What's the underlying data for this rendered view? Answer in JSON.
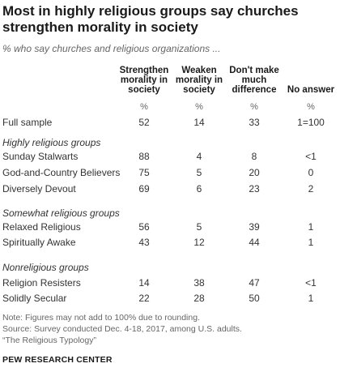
{
  "title": "Most in highly religious groups say churches strengthen morality in society",
  "subtitle": "% who say churches and religious organizations ...",
  "columns": [
    "Strengthen morality in society",
    "Weaken morality in society",
    "Don't make much difference",
    "No answer"
  ],
  "percent_symbol": "%",
  "chart_data": {
    "type": "table",
    "title": "Most in highly religious groups say churches strengthen morality in society",
    "subtitle": "% who say churches and religious organizations ...",
    "columns": [
      "Strengthen morality in society",
      "Weaken morality in society",
      "Don't make much difference",
      "No answer"
    ],
    "sections": [
      {
        "group": "",
        "rows": [
          {
            "label": "Full sample",
            "values": [
              "52",
              "14",
              "33",
              "1=100"
            ]
          }
        ]
      },
      {
        "group": "Highly religious groups",
        "rows": [
          {
            "label": "Sunday Stalwarts",
            "values": [
              "88",
              "4",
              "8",
              "<1"
            ]
          },
          {
            "label": "God-and-Country Believers",
            "values": [
              "75",
              "5",
              "20",
              "0"
            ]
          },
          {
            "label": "Diversely Devout",
            "values": [
              "69",
              "6",
              "23",
              "2"
            ]
          }
        ]
      },
      {
        "group": "Somewhat religious groups",
        "rows": [
          {
            "label": "Relaxed Religious",
            "values": [
              "56",
              "5",
              "39",
              "1"
            ]
          },
          {
            "label": "Spiritually Awake",
            "values": [
              "43",
              "12",
              "44",
              "1"
            ]
          }
        ]
      },
      {
        "group": "Nonreligious groups",
        "rows": [
          {
            "label": "Religion Resisters",
            "values": [
              "14",
              "38",
              "47",
              "<1"
            ]
          },
          {
            "label": "Solidly Secular",
            "values": [
              "22",
              "28",
              "50",
              "1"
            ]
          }
        ]
      }
    ]
  },
  "notes": [
    "Note: Figures may not add to 100% due to rounding.",
    "Source: Survey conducted Dec. 4-18, 2017, among U.S. adults.",
    "“The Religious Typology”"
  ],
  "brand": "PEW RESEARCH CENTER"
}
